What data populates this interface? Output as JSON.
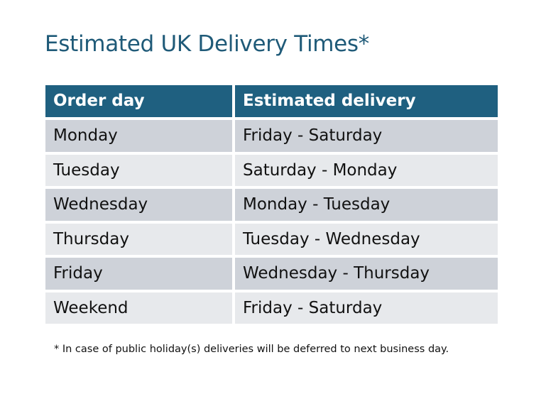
{
  "title": "Estimated UK Delivery Times*",
  "table": {
    "headers": [
      "Order day",
      "Estimated delivery"
    ],
    "rows": [
      [
        "Monday",
        "Friday - Saturday"
      ],
      [
        "Tuesday",
        "Saturday - Monday"
      ],
      [
        "Wednesday",
        "Monday - Tuesday"
      ],
      [
        "Thursday",
        "Tuesday - Wednesday"
      ],
      [
        "Friday",
        "Wednesday - Thursday"
      ],
      [
        "Weekend",
        "Friday - Saturday"
      ]
    ]
  },
  "footnote": "* In case of public holiday(s) deliveries will be deferred to next business day.",
  "colors": {
    "header": "#1f6080",
    "title": "#1f5a78",
    "row_dark": "#ced2d9",
    "row_light": "#e7e9ec"
  }
}
